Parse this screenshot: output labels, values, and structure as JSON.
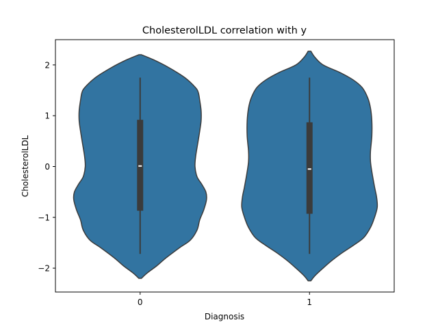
{
  "chart_data": {
    "type": "violin",
    "title": "CholesterolLDL correlation with y",
    "xlabel": "Diagnosis",
    "ylabel": "CholesterolLDL",
    "categories": [
      "0",
      "1"
    ],
    "y_ticks": [
      2,
      1,
      0,
      -1,
      -2
    ],
    "y_tick_labels": [
      "2",
      "1",
      "0",
      "−1",
      "−2"
    ],
    "ylim": [
      -2.45,
      2.5
    ],
    "grid": false,
    "violin_color": "#3274a1",
    "edge_color": "#3b3b3b",
    "box_color": "#3b3b3b",
    "violins": [
      {
        "category": "0",
        "whisker_low": -1.72,
        "q1": -0.87,
        "median": 0.01,
        "q3": 0.92,
        "whisker_high": 1.75,
        "density_profile": [
          [
            2.2,
            0.02
          ],
          [
            2.1,
            0.2
          ],
          [
            1.95,
            0.42
          ],
          [
            1.75,
            0.66
          ],
          [
            1.55,
            0.82
          ],
          [
            1.45,
            0.86
          ],
          [
            1.3,
            0.88
          ],
          [
            1.1,
            0.9
          ],
          [
            0.9,
            0.9
          ],
          [
            0.7,
            0.88
          ],
          [
            0.45,
            0.85
          ],
          [
            0.2,
            0.82
          ],
          [
            0.0,
            0.81
          ],
          [
            -0.2,
            0.84
          ],
          [
            -0.35,
            0.91
          ],
          [
            -0.5,
            0.97
          ],
          [
            -0.65,
            0.98
          ],
          [
            -0.85,
            0.94
          ],
          [
            -1.05,
            0.88
          ],
          [
            -1.25,
            0.84
          ],
          [
            -1.45,
            0.74
          ],
          [
            -1.6,
            0.58
          ],
          [
            -1.8,
            0.38
          ],
          [
            -1.95,
            0.25
          ],
          [
            -2.1,
            0.1
          ],
          [
            -2.2,
            0.02
          ]
        ]
      },
      {
        "category": "1",
        "whisker_low": -1.72,
        "q1": -0.93,
        "median": -0.05,
        "q3": 0.87,
        "whisker_high": 1.75,
        "density_profile": [
          [
            2.27,
            0.02
          ],
          [
            2.15,
            0.08
          ],
          [
            2.0,
            0.2
          ],
          [
            1.85,
            0.45
          ],
          [
            1.7,
            0.65
          ],
          [
            1.55,
            0.78
          ],
          [
            1.35,
            0.86
          ],
          [
            1.15,
            0.9
          ],
          [
            0.9,
            0.92
          ],
          [
            0.6,
            0.92
          ],
          [
            0.3,
            0.9
          ],
          [
            0.1,
            0.9
          ],
          [
            -0.1,
            0.92
          ],
          [
            -0.4,
            0.96
          ],
          [
            -0.6,
            0.99
          ],
          [
            -0.8,
            1.0
          ],
          [
            -1.0,
            0.96
          ],
          [
            -1.2,
            0.9
          ],
          [
            -1.4,
            0.8
          ],
          [
            -1.55,
            0.65
          ],
          [
            -1.7,
            0.48
          ],
          [
            -1.85,
            0.33
          ],
          [
            -2.0,
            0.2
          ],
          [
            -2.15,
            0.08
          ],
          [
            -2.25,
            0.02
          ]
        ]
      }
    ]
  }
}
